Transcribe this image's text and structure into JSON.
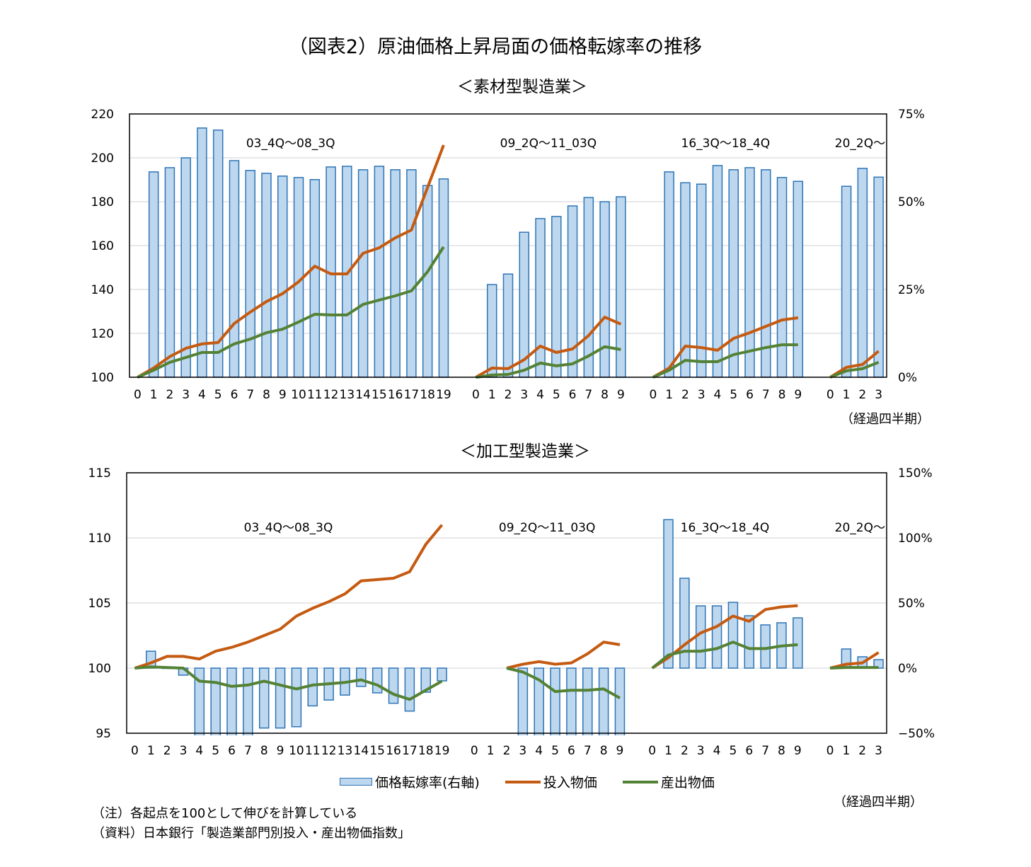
{
  "title": "（図表2）原油価格上昇局面の価格転嫁率の推移",
  "xunit_label": "（経過四半期）",
  "legend": {
    "bar": "価格転嫁率(右軸)",
    "input": "投入物価",
    "output": "産出物価"
  },
  "notes": [
    "（注）各起点を100として伸びを計算している",
    "（資料）日本銀行「製造業部門別投入・産出物価指数」"
  ],
  "colors": {
    "bar_fill": "#bdd7ee",
    "bar_stroke": "#2e75b6",
    "input": "#c55a11",
    "output": "#548235",
    "grid": "#d9d9d9"
  },
  "chart_data": [
    {
      "type": "bar+line",
      "title": "＜素材型製造業＞",
      "ylim": [
        100,
        220
      ],
      "yticks": [
        100,
        120,
        140,
        160,
        180,
        200,
        220
      ],
      "y2lim": [
        0,
        75
      ],
      "y2ticks": [
        "0%",
        "25%",
        "50%",
        "75%"
      ],
      "y2tick_values": [
        0,
        25,
        50,
        75
      ],
      "grid": true,
      "groups": [
        {
          "label": "03_4Q～08_3Q",
          "x": [
            0,
            1,
            2,
            3,
            4,
            5,
            6,
            7,
            8,
            9,
            10,
            11,
            12,
            13,
            14,
            15,
            16,
            17,
            18,
            19
          ],
          "bar": [
            null,
            58.5,
            59.7,
            62.5,
            71,
            70.4,
            61.7,
            58.9,
            58.1,
            57.3,
            56.9,
            56.3,
            59.9,
            60.1,
            59.1,
            60.1,
            59.1,
            59.1,
            54.6,
            56.5
          ],
          "input": [
            100,
            104.2,
            109.4,
            113.2,
            115.2,
            115.8,
            124.5,
            129.7,
            134.5,
            138.1,
            143.5,
            150.6,
            147.1,
            147.1,
            156.5,
            159,
            163.5,
            167.1,
            186.5,
            205.8
          ],
          "output": [
            100,
            103.2,
            106.8,
            109,
            111.3,
            111.3,
            115.2,
            117.4,
            120.3,
            121.9,
            125.2,
            128.7,
            128.4,
            128.4,
            133.2,
            135.2,
            137.1,
            139.4,
            148.1,
            159.4
          ]
        },
        {
          "label": "09_2Q～11_03Q",
          "x": [
            0,
            1,
            2,
            3,
            4,
            5,
            6,
            7,
            8,
            9
          ],
          "bar": [
            null,
            26.4,
            29.4,
            41.3,
            45.2,
            45.8,
            48.8,
            51.2,
            50,
            51.4
          ],
          "input": [
            100,
            104.2,
            103.9,
            108,
            114.2,
            111.3,
            112.9,
            119,
            127.4,
            124.2
          ],
          "output": [
            100,
            101,
            101.3,
            103.2,
            106.5,
            105.2,
            106.1,
            109.7,
            113.9,
            112.6
          ]
        },
        {
          "label": "16_3Q～18_4Q",
          "x": [
            0,
            1,
            2,
            3,
            4,
            5,
            6,
            7,
            8,
            9
          ],
          "bar": [
            null,
            58.5,
            55.4,
            55,
            60.3,
            59.1,
            59.7,
            59.1,
            56.9,
            55.8
          ],
          "input": [
            100,
            104.2,
            114.2,
            113.5,
            112.3,
            117.7,
            120.3,
            123.2,
            126.1,
            127.1
          ],
          "output": [
            100,
            103.2,
            107.7,
            107.1,
            107.1,
            110.3,
            111.9,
            113.5,
            114.8,
            114.8
          ]
        },
        {
          "label": "20_2Q～",
          "x": [
            0,
            1,
            2,
            3
          ],
          "bar": [
            null,
            54.4,
            59.5,
            57
          ],
          "input": [
            100,
            104.5,
            105.8,
            111.9
          ],
          "output": [
            100,
            102.9,
            103.9,
            106.8
          ]
        }
      ]
    },
    {
      "type": "bar+line",
      "title": "＜加工型製造業＞",
      "ylim": [
        95,
        115
      ],
      "yticks": [
        95,
        100,
        105,
        110,
        115
      ],
      "y2lim": [
        -50,
        150
      ],
      "y2ticks": [
        "−50%",
        "0%",
        "50%",
        "100%",
        "150%"
      ],
      "y2tick_values": [
        -50,
        0,
        50,
        100,
        150
      ],
      "grid": true,
      "groups": [
        {
          "label": "03_4Q～08_3Q",
          "x": [
            0,
            1,
            2,
            3,
            4,
            5,
            6,
            7,
            8,
            9,
            10,
            11,
            12,
            13,
            14,
            15,
            16,
            17,
            18,
            19
          ],
          "bar": [
            null,
            13,
            0,
            -5.4,
            -55,
            -55,
            -55,
            -55,
            -46,
            -46,
            -45,
            -29,
            -24.5,
            -20.7,
            -14,
            -19,
            -27,
            -33,
            -18.5,
            -9.8
          ],
          "input": [
            100,
            100.4,
            100.9,
            100.9,
            100.7,
            101.3,
            101.6,
            102,
            102.5,
            103,
            104,
            104.6,
            105.1,
            105.7,
            106.7,
            106.8,
            106.9,
            107.4,
            109.5,
            111
          ],
          "output": [
            100,
            100.1,
            100.05,
            100,
            99,
            98.9,
            98.6,
            98.7,
            99,
            98.7,
            98.4,
            98.7,
            98.8,
            98.9,
            99.1,
            98.7,
            98,
            97.6,
            98.3,
            99
          ]
        },
        {
          "label": "09_2Q～11_03Q",
          "x": [
            0,
            1,
            2,
            3,
            4,
            5,
            6,
            7,
            8,
            9
          ],
          "bar": [
            null,
            null,
            null,
            -55,
            -55,
            -55,
            -55,
            -55,
            -55,
            -55
          ],
          "input": [
            null,
            null,
            100,
            100.3,
            100.5,
            100.3,
            100.4,
            101.1,
            102,
            101.8
          ],
          "output": [
            null,
            null,
            100,
            99.7,
            99.1,
            98.2,
            98.3,
            98.3,
            98.4,
            97.7
          ]
        },
        {
          "label": "16_3Q～18_4Q",
          "x": [
            0,
            1,
            2,
            3,
            4,
            5,
            6,
            7,
            8,
            9
          ],
          "bar": [
            null,
            114,
            69,
            47.8,
            47.8,
            50.5,
            40.2,
            33.2,
            34.8,
            38.6
          ],
          "input": [
            100,
            100.8,
            101.8,
            102.7,
            103.2,
            104,
            103.6,
            104.5,
            104.7,
            104.8
          ],
          "output": [
            100,
            101,
            101.3,
            101.3,
            101.5,
            102,
            101.5,
            101.5,
            101.7,
            101.8
          ]
        },
        {
          "label": "20_2Q～",
          "x": [
            0,
            1,
            2,
            3
          ],
          "bar": [
            null,
            14.7,
            8.7,
            6.5
          ],
          "input": [
            100,
            100.3,
            100.4,
            101.2
          ],
          "output": [
            100,
            100.05,
            100.05,
            100.05
          ]
        }
      ]
    }
  ]
}
